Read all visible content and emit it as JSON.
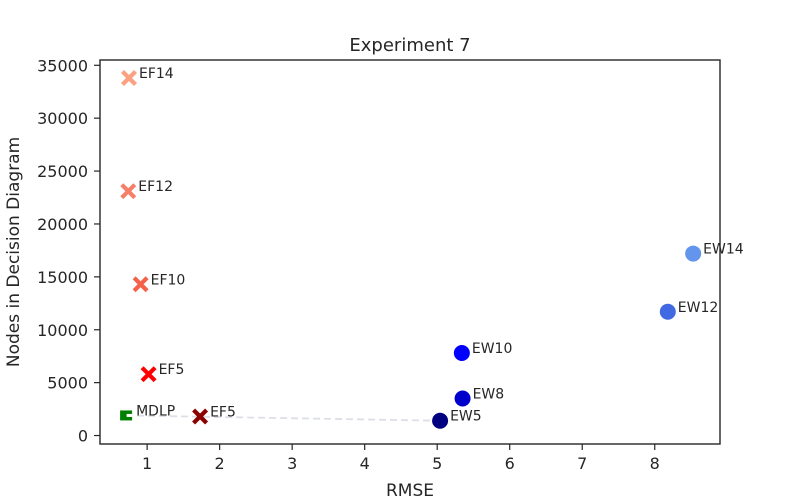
{
  "chart_data": {
    "type": "scatter",
    "title": "Experiment 7",
    "xlabel": "RMSE",
    "ylabel": "Nodes in Decision Diagram",
    "xlim": [
      0.35,
      8.9
    ],
    "ylim": [
      -800,
      35500
    ],
    "xticks": [
      1,
      2,
      3,
      4,
      5,
      6,
      7,
      8
    ],
    "yticks": [
      0,
      5000,
      10000,
      15000,
      20000,
      25000,
      30000,
      35000
    ],
    "grid": false,
    "points": [
      {
        "label": "EF14",
        "x": 0.75,
        "y": 33800,
        "marker": "x",
        "color": "#fca082"
      },
      {
        "label": "EF12",
        "x": 0.74,
        "y": 23100,
        "marker": "x",
        "color": "#f67f6a"
      },
      {
        "label": "EF10",
        "x": 0.91,
        "y": 14300,
        "marker": "x",
        "color": "#f5624b"
      },
      {
        "label": "EF5",
        "x": 1.02,
        "y": 5800,
        "marker": "x",
        "color": "#ff0000"
      },
      {
        "label": "EF5",
        "x": 1.73,
        "y": 1800,
        "marker": "x",
        "color": "#8b0000"
      },
      {
        "label": "MDLP",
        "x": 0.71,
        "y": 1900,
        "marker": "square",
        "color": "#008000"
      },
      {
        "label": "EW14",
        "x": 8.53,
        "y": 17200,
        "marker": "circle",
        "color": "#6495ed"
      },
      {
        "label": "EW12",
        "x": 8.18,
        "y": 11700,
        "marker": "circle",
        "color": "#4169e1"
      },
      {
        "label": "EW10",
        "x": 5.34,
        "y": 7800,
        "marker": "circle",
        "color": "#0000ff"
      },
      {
        "label": "EW8",
        "x": 5.35,
        "y": 3500,
        "marker": "circle",
        "color": "#0000cd"
      },
      {
        "label": "EW5",
        "x": 5.04,
        "y": 1400,
        "marker": "circle",
        "color": "#000080"
      }
    ],
    "connector": {
      "from_point": 5,
      "to_point": 10,
      "style": "dashed",
      "color": "#dcdfe6"
    }
  }
}
